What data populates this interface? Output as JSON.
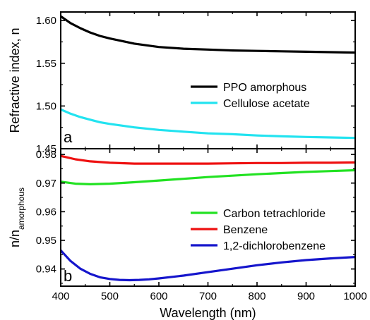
{
  "chart_data": [
    {
      "type": "line",
      "panel_label": "a",
      "ylabel": "Refractive index, n",
      "xlim": [
        400,
        1000
      ],
      "ylim": [
        1.45,
        1.61
      ],
      "yticks": [
        "1.45",
        "1.50",
        "1.55",
        "1.60"
      ],
      "legend_position": "center-right",
      "series": [
        {
          "name": "PPO amorphous",
          "color": "#000000",
          "x": [
            400,
            420,
            440,
            460,
            480,
            500,
            550,
            600,
            650,
            700,
            750,
            800,
            850,
            900,
            950,
            1000
          ],
          "y": [
            1.605,
            1.597,
            1.591,
            1.586,
            1.582,
            1.579,
            1.573,
            1.569,
            1.567,
            1.566,
            1.565,
            1.5645,
            1.564,
            1.5635,
            1.563,
            1.5625
          ]
        },
        {
          "name": "Cellulose acetate",
          "color": "#22e3f0",
          "x": [
            400,
            420,
            440,
            460,
            480,
            500,
            550,
            600,
            650,
            700,
            750,
            800,
            850,
            900,
            950,
            1000
          ],
          "y": [
            1.496,
            1.491,
            1.487,
            1.484,
            1.481,
            1.479,
            1.475,
            1.472,
            1.47,
            1.468,
            1.467,
            1.4655,
            1.4645,
            1.4638,
            1.4632,
            1.4626
          ]
        }
      ]
    },
    {
      "type": "line",
      "panel_label": "b",
      "ylabel": "n/n",
      "ylabel_sub": "amorphous",
      "xlabel": "Wavelength (nm)",
      "xlim": [
        400,
        1000
      ],
      "ylim": [
        0.934,
        0.982
      ],
      "yticks": [
        "0.94",
        "0.95",
        "0.96",
        "0.97",
        "0.98"
      ],
      "xticks": [
        "400",
        "500",
        "600",
        "700",
        "800",
        "900",
        "1000"
      ],
      "legend_position": "lower-right",
      "series": [
        {
          "name": "Carbon tetrachloride",
          "color": "#22e222",
          "x": [
            400,
            430,
            460,
            500,
            550,
            600,
            650,
            700,
            750,
            800,
            850,
            900,
            950,
            1000
          ],
          "y": [
            0.9705,
            0.9698,
            0.9696,
            0.9698,
            0.9703,
            0.9709,
            0.9715,
            0.9721,
            0.9726,
            0.9731,
            0.9735,
            0.9739,
            0.9742,
            0.9745
          ]
        },
        {
          "name": "Benzene",
          "color": "#ee1111",
          "x": [
            400,
            430,
            460,
            500,
            550,
            600,
            650,
            700,
            750,
            800,
            850,
            900,
            950,
            1000
          ],
          "y": [
            0.9795,
            0.9783,
            0.9776,
            0.9771,
            0.9768,
            0.9768,
            0.9768,
            0.9768,
            0.9769,
            0.977,
            0.977,
            0.9771,
            0.9771,
            0.9772
          ]
        },
        {
          "name": "1,2-dichlorobenzene",
          "color": "#1515cc",
          "x": [
            400,
            420,
            440,
            460,
            480,
            500,
            520,
            540,
            560,
            580,
            600,
            650,
            700,
            750,
            800,
            850,
            900,
            950,
            1000
          ],
          "y": [
            0.9465,
            0.9428,
            0.9401,
            0.9383,
            0.9371,
            0.9365,
            0.9362,
            0.9361,
            0.9362,
            0.9364,
            0.9367,
            0.9377,
            0.9389,
            0.9401,
            0.9413,
            0.9423,
            0.9431,
            0.9437,
            0.9442
          ]
        }
      ]
    }
  ]
}
